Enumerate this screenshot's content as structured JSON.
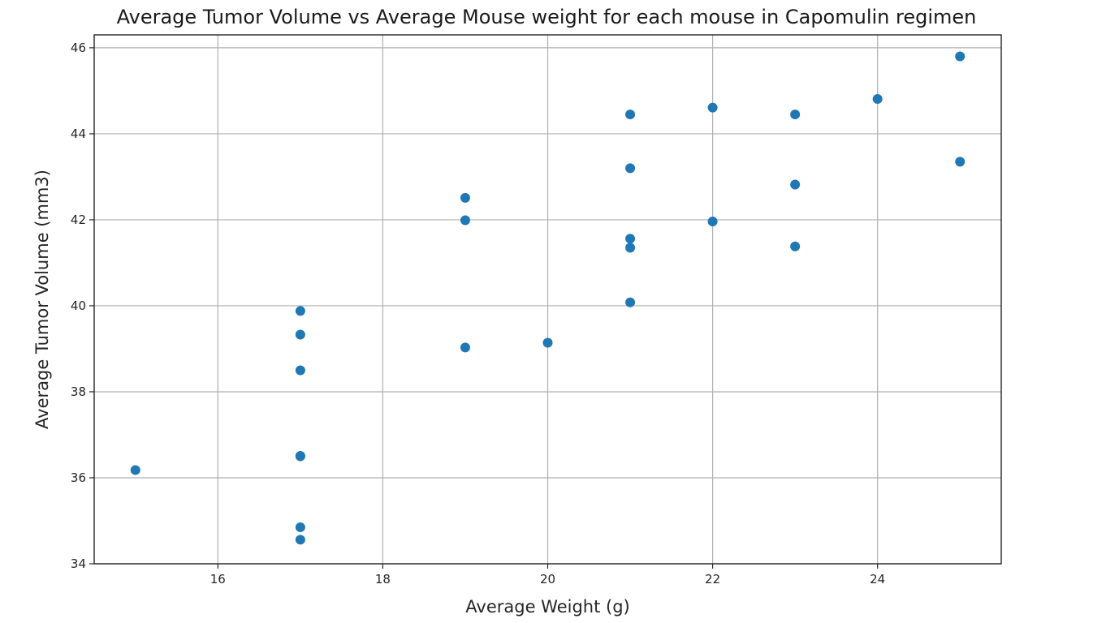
{
  "chart_data": {
    "type": "scatter",
    "title": "Average Tumor Volume vs Average Mouse weight for each mouse in Capomulin regimen",
    "xlabel": "Average Weight (g)",
    "ylabel": "Average Tumor Volume (mm3)",
    "xlim": [
      14.5,
      25.5
    ],
    "ylim": [
      34,
      46.3
    ],
    "xticks": [
      16,
      18,
      20,
      22,
      24
    ],
    "yticks": [
      34,
      36,
      38,
      40,
      42,
      44,
      46
    ],
    "grid": true,
    "marker_color": "#1f77b4",
    "series": [
      {
        "x": [
          15,
          17,
          17,
          17,
          17,
          17,
          17,
          17,
          19,
          19,
          19,
          20,
          21,
          21,
          21,
          21,
          21,
          22,
          22,
          23,
          23,
          23,
          24,
          25,
          25
        ],
        "y": [
          36.18,
          34.56,
          34.85,
          36.51,
          36.5,
          38.5,
          39.33,
          39.88,
          42.51,
          41.99,
          39.03,
          39.14,
          44.45,
          43.2,
          41.56,
          41.35,
          40.08,
          44.61,
          41.96,
          44.45,
          42.82,
          41.38,
          44.81,
          45.8,
          43.35
        ]
      }
    ]
  }
}
